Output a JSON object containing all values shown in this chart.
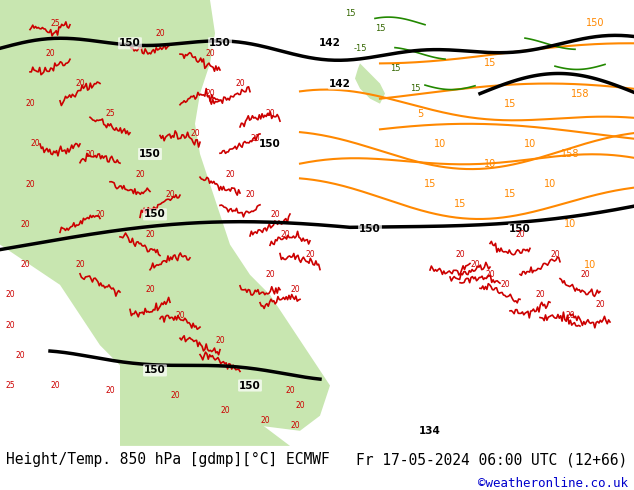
{
  "title_left": "Height/Temp. 850 hPa [gdmp][°C] ECMWF",
  "title_right": "Fr 17-05-2024 06:00 UTC (12+66)",
  "credit": "©weatheronline.co.uk",
  "bg_color": "#ffffff",
  "map_bg_color": "#d8eaf5",
  "land_color": "#c8e6b0",
  "title_fontsize": 10.5,
  "credit_fontsize": 9,
  "credit_color": "#0000cc",
  "text_color": "#000000",
  "footer_bg": "#e8e8e8"
}
